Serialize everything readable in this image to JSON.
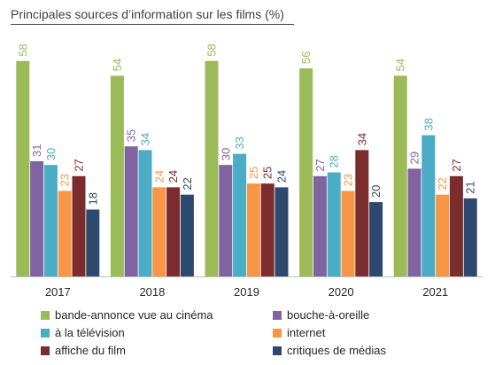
{
  "chart_data": {
    "type": "bar",
    "title": "Principales sources d’information sur les films (%)",
    "xlabel": "",
    "ylabel": "",
    "ylim": [
      0,
      62
    ],
    "grid": false,
    "legend_position": "bottom",
    "categories": [
      "2017",
      "2018",
      "2019",
      "2020",
      "2021"
    ],
    "series": [
      {
        "name": "bande-annonce vue au cinéma",
        "color": "#9bbb59",
        "values": [
          58,
          54,
          58,
          56,
          54
        ]
      },
      {
        "name": "bouche-à-oreille",
        "color": "#8064a2",
        "values": [
          31,
          35,
          30,
          27,
          29
        ]
      },
      {
        "name": "à la télévision",
        "color": "#4bacc6",
        "values": [
          30,
          34,
          33,
          28,
          38
        ]
      },
      {
        "name": "internet",
        "color": "#f79646",
        "values": [
          23,
          24,
          25,
          23,
          22
        ]
      },
      {
        "name": "affiche du film",
        "color": "#7b2c2c",
        "values": [
          27,
          24,
          25,
          34,
          27
        ]
      },
      {
        "name": "critiques de médias",
        "color": "#2d4a6e",
        "values": [
          18,
          22,
          24,
          20,
          21
        ]
      }
    ]
  }
}
